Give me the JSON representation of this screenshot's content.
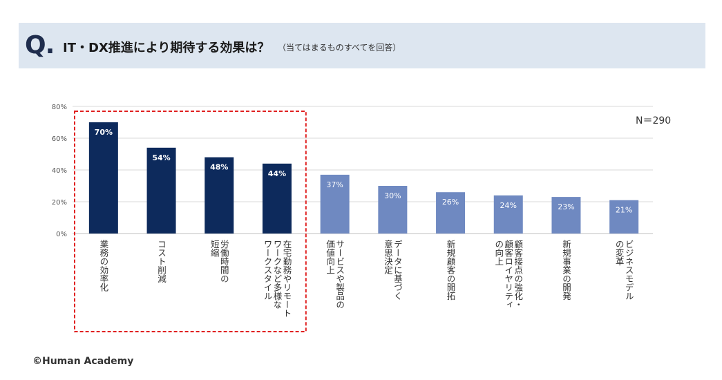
{
  "header": {
    "q_mark": "Q.",
    "title": "IT・DX推進により期待する効果は？",
    "note": "（当てはまるものすべてを回答）"
  },
  "n_label": "N＝290",
  "footer": "©Human Academy",
  "colors": {
    "dark_bar": "#0d2a5c",
    "light_bar": "#6f89c1",
    "highlight_box": "#e02020",
    "grid": "#d9d9d9",
    "header_bg": "#dde6f0"
  },
  "chart_data": {
    "type": "bar",
    "categories": [
      "業務の効率化",
      "コスト削減",
      "労働時間の短縮",
      "在宅勤務やリモートワークなど多様なワークスタイル",
      "サービスや製品の価値向上",
      "データに基づく意思決定",
      "新規顧客の開拓",
      "顧客接点の強化・顧客ロイヤリティの向上",
      "新規事業の開発",
      "ビジネスモデルの変革"
    ],
    "category_lines": [
      [
        "業務の効率化"
      ],
      [
        "コスト削減"
      ],
      [
        "労働時間の",
        "短縮"
      ],
      [
        "在宅勤務やリモート",
        "ワークなど多様な",
        "ワークスタイル"
      ],
      [
        "サービスや製品の",
        "価値向上"
      ],
      [
        "データに基づく",
        "意思決定"
      ],
      [
        "新規顧客の開拓"
      ],
      [
        "顧客接点の強化・",
        "顧客ロイヤリティ",
        "の向上"
      ],
      [
        "新規事業の開発"
      ],
      [
        "ビジネスモデル",
        "の変革"
      ]
    ],
    "values": [
      70,
      54,
      48,
      44,
      37,
      30,
      26,
      24,
      23,
      21
    ],
    "value_labels": [
      "70%",
      "54%",
      "48%",
      "44%",
      "37%",
      "30%",
      "26%",
      "24%",
      "23%",
      "21%"
    ],
    "highlighted_count": 4,
    "ylim": [
      0,
      80
    ],
    "yticks": [
      "0%",
      "20%",
      "40%",
      "60%",
      "80%"
    ],
    "ytick_values": [
      0,
      20,
      40,
      60,
      80
    ],
    "grid": true
  }
}
